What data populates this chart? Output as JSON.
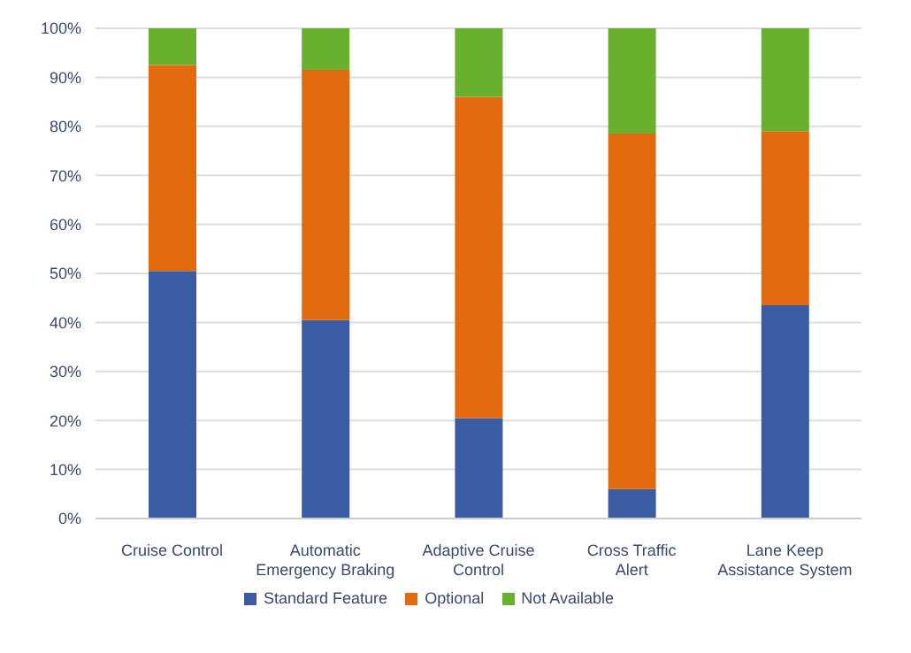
{
  "chart_data": {
    "type": "bar",
    "stacked": true,
    "categories": [
      "Cruise Control",
      "Automatic Emergency Braking",
      "Adaptive Cruise Control",
      "Cross Traffic Alert",
      "Lane Keep Assistance System"
    ],
    "series": [
      {
        "name": "Standard Feature",
        "color": "#3a5ca3",
        "values": [
          50.5,
          40.5,
          20.5,
          6,
          43.5
        ]
      },
      {
        "name": "Optional",
        "color": "#e2690e",
        "values": [
          42,
          51,
          65.5,
          72.5,
          35.5
        ]
      },
      {
        "name": "Not Available",
        "color": "#6ab02f",
        "values": [
          7.5,
          8.5,
          14,
          21.5,
          21
        ]
      }
    ],
    "ylim": [
      0,
      100
    ],
    "yticks": [
      {
        "value": 0,
        "label": "0%"
      },
      {
        "value": 10,
        "label": "10%"
      },
      {
        "value": 20,
        "label": "20%"
      },
      {
        "value": 30,
        "label": "30%"
      },
      {
        "value": 40,
        "label": "40%"
      },
      {
        "value": 50,
        "label": "50%"
      },
      {
        "value": 60,
        "label": "60%"
      },
      {
        "value": 70,
        "label": "70%"
      },
      {
        "value": 80,
        "label": "80%"
      },
      {
        "value": 90,
        "label": "90%"
      },
      {
        "value": 100,
        "label": "100%"
      }
    ],
    "grid": "y",
    "legend": "bottom"
  }
}
